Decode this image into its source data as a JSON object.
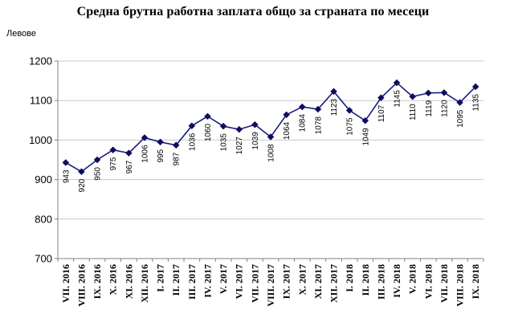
{
  "chart_data": {
    "type": "line",
    "title": "Средна брутна работна заплата общо за страната по месеци",
    "ylabel": "Левове",
    "xlabel": "",
    "ylim": [
      700,
      1200
    ],
    "yticks": [
      700,
      800,
      900,
      1000,
      1100,
      1200
    ],
    "grid": true,
    "legend": "none",
    "categories": [
      "VII. 2016",
      "VIII. 2016",
      "IX. 2016",
      "X. 2016",
      "XI. 2016",
      "XII. 2016",
      "I. 2017",
      "II. 2017",
      "III. 2017",
      "IV. 2017",
      "V. 2017",
      "VI. 2017",
      "VII. 2017",
      "VIII. 2017",
      "IX. 2017",
      "X. 2017",
      "XI. 2017",
      "XII. 2017",
      "I. 2018",
      "II. 2018",
      "III. 2018",
      "IV. 2018",
      "V. 2018",
      "VI. 2018",
      "VII. 2018",
      "VIII. 2018",
      "IX. 2018"
    ],
    "series": [
      {
        "values": [
          943,
          920,
          950,
          975,
          967,
          1006,
          995,
          987,
          1036,
          1060,
          1035,
          1027,
          1039,
          1008,
          1064,
          1084,
          1078,
          1123,
          1075,
          1049,
          1107,
          1145,
          1110,
          1119,
          1120,
          1095,
          1135
        ]
      }
    ],
    "colors": {
      "line": "#1a1a80",
      "marker": "#0d0d5c",
      "grid": "#c8c8c8",
      "axis": "#808080"
    }
  }
}
